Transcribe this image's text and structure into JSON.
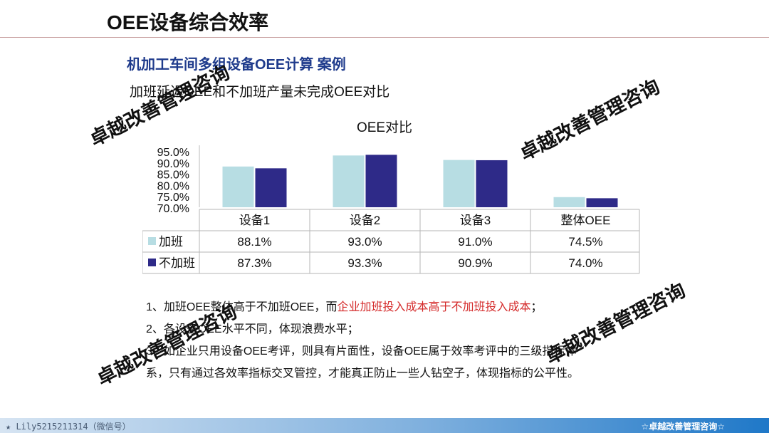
{
  "header": {
    "title": "OEE设备综合效率"
  },
  "subtitle": "机加工车间多组设备OEE计算  案例",
  "intro": "加班延迟OEE和不加班产量未完成OEE对比",
  "chart_data": {
    "type": "bar",
    "title": "OEE对比",
    "categories": [
      "设备1",
      "设备2",
      "设备3",
      "整体OEE"
    ],
    "series": [
      {
        "name": "加班",
        "values": [
          88.1,
          93.0,
          91.0,
          74.5
        ],
        "labels": [
          "88.1%",
          "93.0%",
          "91.0%",
          "74.5%"
        ],
        "color": "#b7dde3"
      },
      {
        "name": "不加班",
        "values": [
          87.3,
          93.3,
          90.9,
          74.0
        ],
        "labels": [
          "87.3%",
          "93.3%",
          "90.9%",
          "74.0%"
        ],
        "color": "#2e2a88"
      }
    ],
    "ylim": [
      70,
      95
    ],
    "yticks": [
      70,
      75,
      80,
      85,
      90,
      95
    ],
    "ytick_labels": [
      "70.0%",
      "75.0%",
      "80.0%",
      "85.0%",
      "90.0%",
      "95.0%"
    ],
    "data_table": true,
    "legend": "in-table"
  },
  "notes": {
    "line1_a": "1、加班OEE整体高于不加班OEE，而",
    "line1_b": "企业加班投入成本高于不加班投入成本",
    "line1_c": "；",
    "line2": "2、各设备OEE水平不同，体现浪费水平；",
    "line3": "3、如企业只用设备OEE考评，则具有片面性，设备OEE属于效率考评中的三级指标体",
    "line4": "系，只有通过各效率指标交叉管控，才能真正防止一些人钻空子，体现指标的公平性。"
  },
  "watermark": "卓越改善管理咨询",
  "footer": {
    "left": "★ Lily5215211314（微信号）",
    "right": "☆卓越改善管理咨询☆"
  },
  "colors": {
    "subtitle": "#1f3b8c",
    "highlight": "#d42a2a"
  }
}
